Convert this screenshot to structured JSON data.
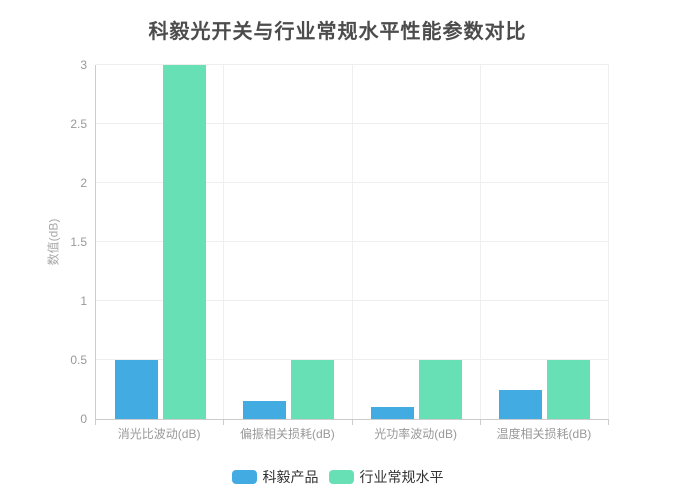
{
  "chart_data": {
    "type": "bar",
    "title": "科毅光开关与行业常规水平性能参数对比",
    "categories": [
      "消光比波动(dB)",
      "偏振相关损耗(dB)",
      "光功率波动(dB)",
      "温度相关损耗(dB)"
    ],
    "series": [
      {
        "name": "科毅产品",
        "color": "#42ace2",
        "values": [
          0.5,
          0.15,
          0.1,
          0.25
        ]
      },
      {
        "name": "行业常规水平",
        "color": "#67e0b5",
        "values": [
          3,
          0.5,
          0.5,
          0.5
        ]
      }
    ],
    "xlabel": "",
    "ylabel": "数值(dB)",
    "ylim": [
      0,
      3
    ],
    "ytick_interval": 0.5,
    "yticks": [
      "0",
      "0.5",
      "1",
      "1.5",
      "2",
      "2.5",
      "3"
    ],
    "grid": true,
    "legend_position": "bottom"
  },
  "legend": {
    "items": [
      {
        "label": "科毅产品",
        "color": "#42ace2"
      },
      {
        "label": "行业常规水平",
        "color": "#67e0b5"
      }
    ]
  },
  "colors": {
    "series_keyi": "#42ace2",
    "series_industry": "#67e0b5",
    "title_text": "#4c4c4c",
    "axis_label": "#999999",
    "legend_text": "#333333",
    "grid_line": "#eeeeee",
    "axis_line": "#cccccc",
    "background": "#ffffff"
  }
}
